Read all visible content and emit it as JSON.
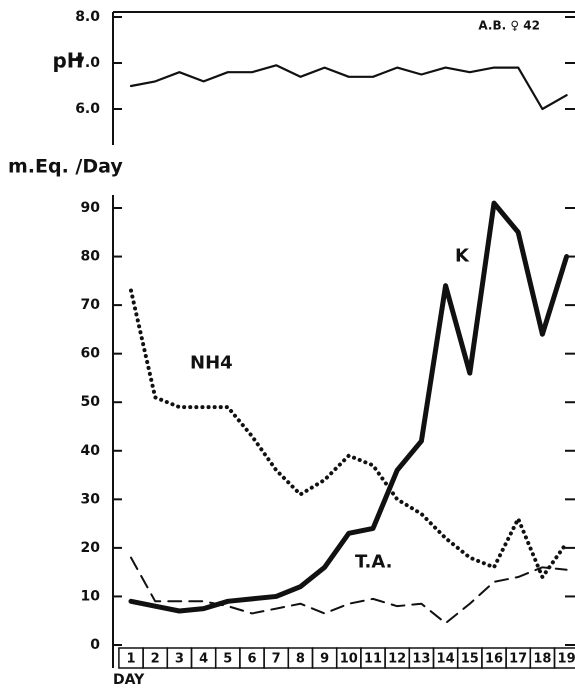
{
  "chart_data": [
    {
      "type": "line",
      "y_label": "pH",
      "annotation": "A.B. ♀ 42",
      "ylim": [
        6.0,
        8.0
      ],
      "yticks": [
        {
          "value": 6,
          "label": "6.0"
        },
        {
          "value": 7,
          "label": "7.0"
        },
        {
          "value": 8,
          "label": "8.0"
        }
      ],
      "series": [
        {
          "name": "pH",
          "color": "#111",
          "values": [
            6.5,
            6.6,
            6.8,
            6.6,
            6.8,
            6.8,
            6.95,
            6.7,
            6.9,
            6.7,
            6.7,
            6.9,
            6.75,
            6.9,
            6.8,
            6.9,
            6.9,
            6.0,
            6.3
          ]
        }
      ]
    },
    {
      "type": "line",
      "y_label": "m.Eq. /Day",
      "x_label": "DAY",
      "categories": [
        "1",
        "2",
        "3",
        "4",
        "5",
        "6",
        "7",
        "8",
        "9",
        "10",
        "11",
        "12",
        "13",
        "14",
        "15",
        "16",
        "17",
        "18",
        "19"
      ],
      "ylim": [
        0,
        90
      ],
      "yticks": [
        0,
        10,
        20,
        30,
        40,
        50,
        60,
        70,
        80,
        90
      ],
      "series": [
        {
          "name": "K",
          "color": "#111",
          "style": "solid",
          "values": [
            9,
            8,
            7,
            7.5,
            9,
            9.5,
            10,
            12,
            16,
            23,
            24,
            36,
            42,
            74,
            56,
            91,
            85,
            64,
            80
          ]
        },
        {
          "name": "NH4",
          "color": "#111",
          "style": "dotted",
          "values": [
            73,
            51,
            49,
            49,
            49,
            43,
            36,
            31,
            34,
            39,
            37,
            30,
            27,
            22,
            18,
            16,
            26,
            14,
            21
          ]
        },
        {
          "name": "T.A.",
          "color": "#111",
          "style": "dashed",
          "values": [
            18,
            9,
            9,
            9,
            8,
            6.5,
            7.5,
            8.5,
            6.5,
            8.5,
            9.5,
            8,
            8.5,
            4.5,
            8.5,
            13,
            14,
            16,
            15.5
          ]
        }
      ]
    }
  ]
}
